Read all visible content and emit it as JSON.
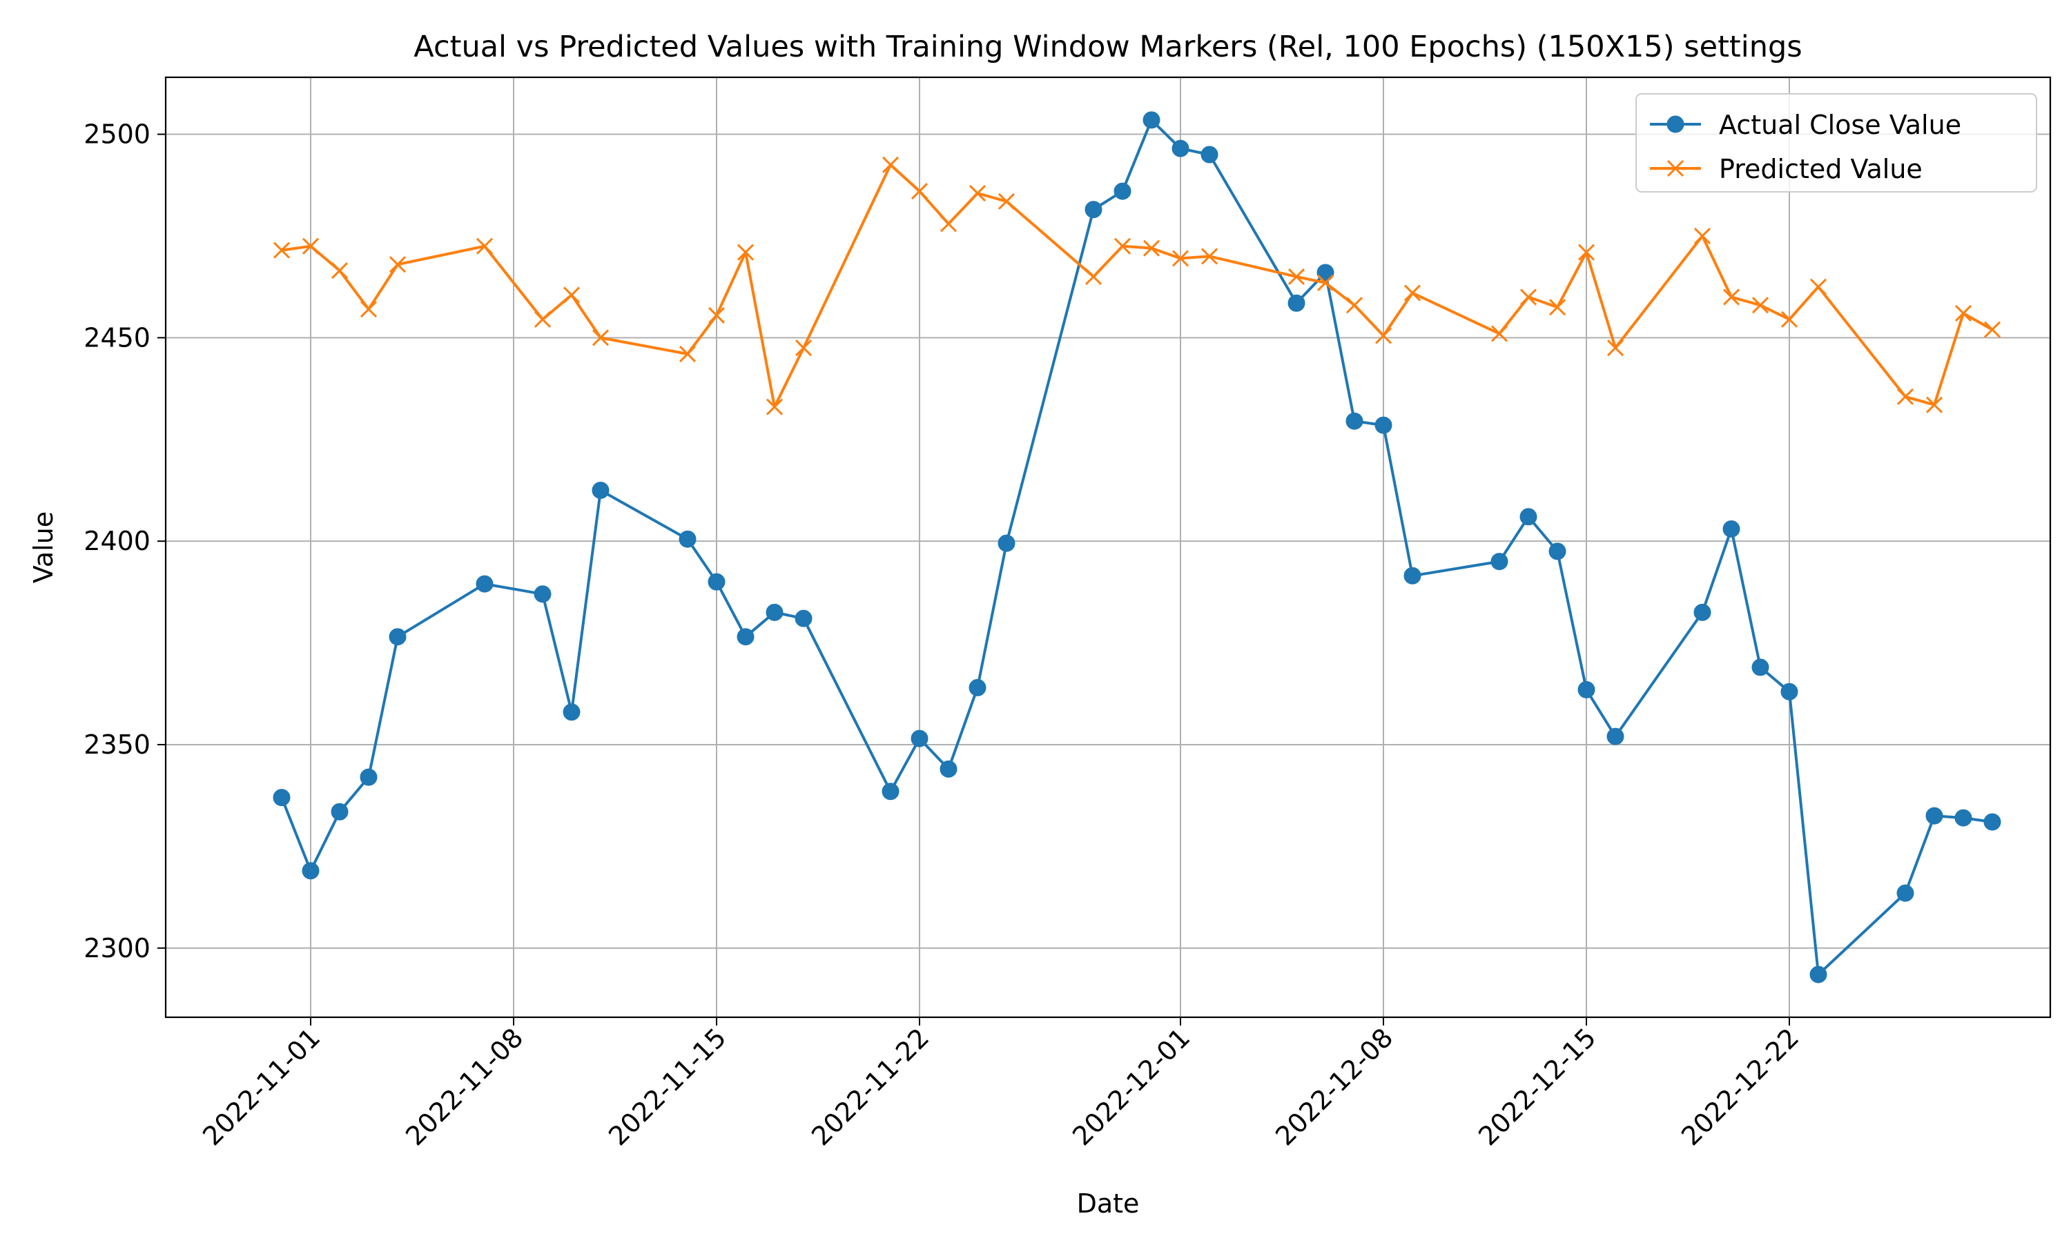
{
  "chart_data": {
    "type": "line",
    "title": "Actual vs Predicted Values with Training Window Markers (Rel, 100 Epochs) (150X15) settings",
    "xlabel": "Date",
    "ylabel": "Value",
    "xlim": [
      "2022-10-27",
      "2022-12-31"
    ],
    "ylim": [
      2283,
      2514
    ],
    "x_ticks": [
      "2022-11-01",
      "2022-11-08",
      "2022-11-15",
      "2022-11-22",
      "2022-12-01",
      "2022-12-08",
      "2022-12-15",
      "2022-12-22"
    ],
    "y_ticks": [
      2300,
      2350,
      2400,
      2450,
      2500
    ],
    "grid": true,
    "legend_position": "upper right",
    "x": [
      "2022-10-31",
      "2022-11-01",
      "2022-11-02",
      "2022-11-03",
      "2022-11-04",
      "2022-11-07",
      "2022-11-09",
      "2022-11-10",
      "2022-11-11",
      "2022-11-14",
      "2022-11-15",
      "2022-11-16",
      "2022-11-17",
      "2022-11-18",
      "2022-11-21",
      "2022-11-22",
      "2022-11-23",
      "2022-11-24",
      "2022-11-25",
      "2022-11-28",
      "2022-11-29",
      "2022-11-30",
      "2022-12-01",
      "2022-12-02",
      "2022-12-05",
      "2022-12-06",
      "2022-12-07",
      "2022-12-08",
      "2022-12-09",
      "2022-12-12",
      "2022-12-13",
      "2022-12-14",
      "2022-12-15",
      "2022-12-16",
      "2022-12-19",
      "2022-12-20",
      "2022-12-21",
      "2022-12-22",
      "2022-12-23",
      "2022-12-26",
      "2022-12-27",
      "2022-12-28",
      "2022-12-29"
    ],
    "series": [
      {
        "name": "Actual Close Value",
        "color": "#1f77b4",
        "marker": "circle",
        "values": [
          2337,
          2319,
          2333.5,
          2342,
          2376.5,
          2389.5,
          2387,
          2358,
          2412.5,
          2400.5,
          2390,
          2376.5,
          2382.5,
          2381,
          2338.5,
          2351.5,
          2344,
          2364,
          2399.5,
          2481.5,
          2486,
          2503.5,
          2496.5,
          2495,
          2458.5,
          2466,
          2429.5,
          2428.5,
          2391.5,
          2395,
          2406,
          2397.5,
          2363.5,
          2352,
          2382.5,
          2403,
          2369,
          2363,
          2293.5,
          2313.5,
          2332.5,
          2332,
          2331
        ]
      },
      {
        "name": "Predicted Value",
        "color": "#ff7f0e",
        "marker": "x",
        "values": [
          2471.5,
          2472.5,
          2466.5,
          2457,
          2468,
          2472.5,
          2454.5,
          2460.5,
          2450,
          2446,
          2455.5,
          2471,
          2433,
          2447.5,
          2492.5,
          2486,
          2478,
          2485.5,
          2483.5,
          2465,
          2472.5,
          2472,
          2469.5,
          2470,
          2465,
          2463.5,
          2458,
          2450.5,
          2461,
          2451,
          2460,
          2457.5,
          2471,
          2447.5,
          2475,
          2460,
          2458,
          2454.5,
          2462.5,
          2435.5,
          2433.5,
          2456,
          2452
        ]
      }
    ]
  }
}
